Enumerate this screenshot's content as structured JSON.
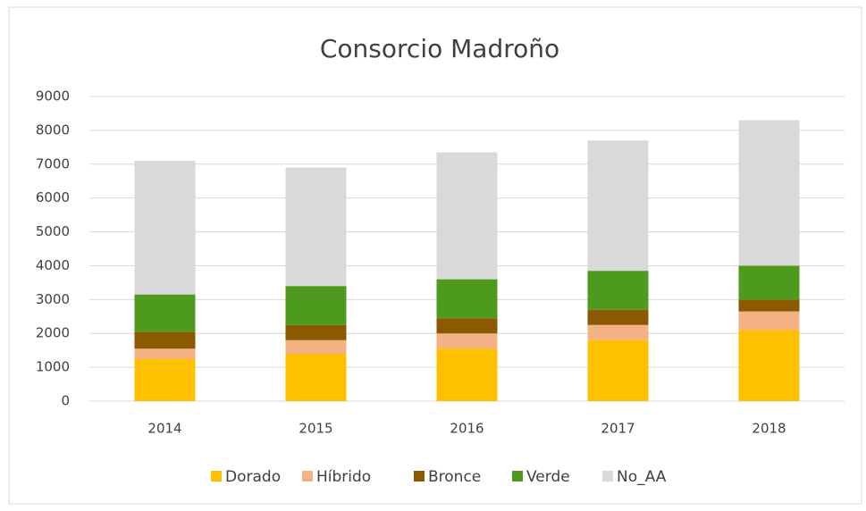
{
  "chart_data": {
    "type": "stacked_bar",
    "title": "Consorcio Madroño",
    "categories": [
      "2014",
      "2015",
      "2016",
      "2017",
      "2018"
    ],
    "series": [
      {
        "name": "Dorado",
        "color": "#ffc000",
        "values": [
          1250,
          1400,
          1550,
          1800,
          2100
        ]
      },
      {
        "name": "Híbrido",
        "color": "#f4b183",
        "values": [
          300,
          400,
          450,
          450,
          550
        ]
      },
      {
        "name": "Bronce",
        "color": "#8b5a00",
        "values": [
          500,
          450,
          450,
          450,
          350
        ]
      },
      {
        "name": "Verde",
        "color": "#4e9a1e",
        "values": [
          1100,
          1150,
          1150,
          1150,
          1000
        ]
      },
      {
        "name": "No_AA",
        "color": "#d9d9d9",
        "values": [
          3950,
          3500,
          3750,
          3850,
          4300
        ]
      }
    ],
    "ylim": [
      0,
      9000
    ],
    "yticks": [
      0,
      1000,
      2000,
      3000,
      4000,
      5000,
      6000,
      7000,
      8000,
      9000
    ],
    "grid": true,
    "legend": "bottom"
  }
}
